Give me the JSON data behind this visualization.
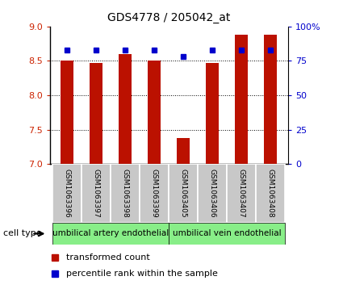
{
  "title": "GDS4778 / 205042_at",
  "samples": [
    "GSM1063396",
    "GSM1063397",
    "GSM1063398",
    "GSM1063399",
    "GSM1063405",
    "GSM1063406",
    "GSM1063407",
    "GSM1063408"
  ],
  "transformed_counts": [
    8.5,
    8.47,
    8.6,
    8.5,
    7.38,
    8.47,
    8.88,
    8.88
  ],
  "percentile_ranks": [
    83,
    83,
    83,
    83,
    78,
    83,
    83,
    83
  ],
  "ylim_left": [
    7,
    9
  ],
  "ylim_right": [
    0,
    100
  ],
  "yticks_left": [
    7,
    7.5,
    8,
    8.5,
    9
  ],
  "yticks_right": [
    0,
    25,
    50,
    75,
    100
  ],
  "yticklabels_right": [
    "0",
    "25",
    "50",
    "75",
    "100%"
  ],
  "bar_color": "#bb1100",
  "percentile_color": "#0000cc",
  "bar_width": 0.45,
  "grid_color": "#000000",
  "cell_type_label": "cell type",
  "artery_label": "umbilical artery endothelial",
  "vein_label": "umbilical vein endothelial",
  "legend_bar_label": "transformed count",
  "legend_pct_label": "percentile rank within the sample",
  "left_tick_color": "#cc2200",
  "right_tick_color": "#0000cc",
  "green_color": "#88ee88",
  "grey_color": "#c8c8c8"
}
